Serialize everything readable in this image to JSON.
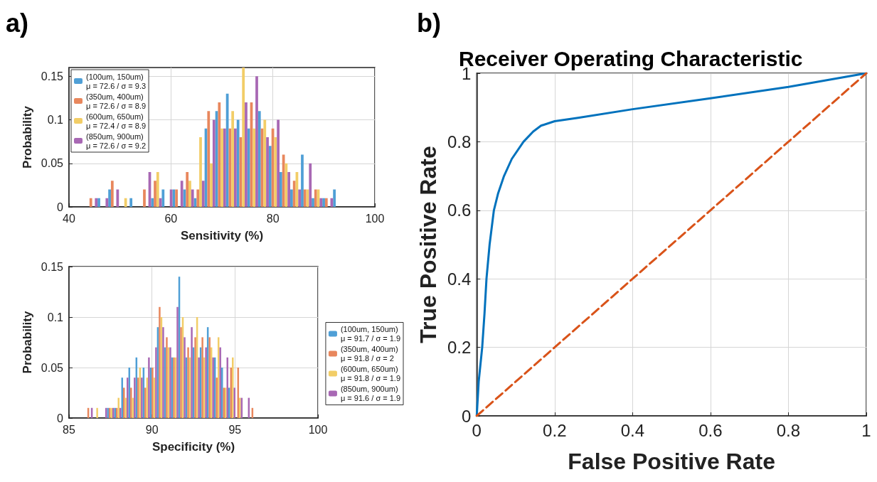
{
  "chart_data": [
    {
      "type": "histogram",
      "xlabel": "Sensitivity (%)",
      "ylabel": "Probability",
      "annotations": [
        "a)"
      ],
      "bins": [
        43.5,
        45.6,
        47.7,
        49.8,
        51.9,
        54.0,
        56.1,
        58.2,
        60.3,
        62.4,
        64.5,
        66.6,
        68.7,
        70.8,
        72.9,
        75.0,
        77.1,
        79.2,
        81.3,
        83.4,
        85.5,
        87.6,
        89.7,
        91.8,
        93.9
      ],
      "series": [
        {
          "name": "(100um, 150um)\nμ = 72.6 / σ = 9.3",
          "color": "#4f9fd6",
          "values": [
            0,
            0.01,
            0.02,
            0,
            0.01,
            0,
            0.01,
            0.02,
            0.02,
            0.02,
            0.01,
            0.09,
            0.11,
            0.13,
            0.1,
            0.09,
            0.11,
            0.07,
            0.04,
            0.02,
            0.06,
            0.01,
            0.01,
            0.02
          ]
        },
        {
          "name": "(350um, 400um)\nμ = 72.6 / σ = 8.9",
          "color": "#e8875d",
          "values": [
            0.01,
            0,
            0.03,
            0,
            0,
            0.02,
            0.03,
            0,
            0.02,
            0.04,
            0.02,
            0.11,
            0.12,
            0.09,
            0.08,
            0.12,
            0.09,
            0.09,
            0.06,
            0.03,
            0.02,
            0.02,
            0.01,
            0
          ]
        },
        {
          "name": "(600um, 650um)\nμ = 72.4 / σ = 8.9",
          "color": "#f2cd67",
          "values": [
            0,
            0,
            0,
            0.01,
            0,
            0,
            0.04,
            0,
            0,
            0.03,
            0.08,
            0.05,
            0.09,
            0.11,
            0.16,
            0.09,
            0.1,
            0.08,
            0.05,
            0.04,
            0.02,
            0.02,
            0,
            0
          ]
        },
        {
          "name": "(850um, 900um)\nμ = 72.6 / σ = 9.2",
          "color": "#a868b4",
          "values": [
            0.01,
            0.01,
            0.02,
            0,
            0,
            0.04,
            0.01,
            0.02,
            0.03,
            0.02,
            0.03,
            0.1,
            0.09,
            0.09,
            0.12,
            0.15,
            0.08,
            0.1,
            0.04,
            0.02,
            0.05,
            0.01,
            0.01,
            0
          ]
        }
      ],
      "xlim": [
        40,
        100
      ],
      "xticks": [
        40,
        60,
        80,
        100
      ],
      "ylim": [
        0,
        0.16
      ],
      "yticks": [
        0,
        0.05,
        0.1,
        0.15
      ],
      "grid": true,
      "legend": "top left"
    },
    {
      "type": "histogram",
      "xlabel": "Specificity (%)",
      "ylabel": "Probability",
      "bins": [
        86.0,
        86.43,
        86.86,
        87.29,
        87.72,
        88.15,
        88.58,
        89.01,
        89.44,
        89.87,
        90.3,
        90.73,
        91.16,
        91.59,
        92.02,
        92.45,
        92.88,
        93.31,
        93.74,
        94.17,
        94.6,
        95.03,
        95.46,
        95.89,
        96.32
      ],
      "series": [
        {
          "name": "(100um, 150um)\nμ = 91.7 / σ = 1.9",
          "color": "#4f9fd6",
          "values": [
            0,
            0,
            0,
            0.01,
            0.01,
            0.04,
            0.05,
            0.06,
            0.05,
            0.05,
            0.09,
            0.07,
            0.06,
            0.14,
            0.06,
            0.07,
            0.07,
            0.09,
            0.06,
            0.05,
            0.03,
            0,
            0,
            0
          ]
        },
        {
          "name": "(350um, 400um)\nμ = 91.8 / σ = 2",
          "color": "#e8875d",
          "values": [
            0.01,
            0,
            0,
            0.01,
            0.01,
            0.03,
            0.03,
            0.04,
            0.03,
            0.05,
            0.11,
            0.08,
            0.06,
            0.09,
            0.07,
            0.08,
            0.08,
            0.08,
            0.04,
            0.03,
            0.05,
            0.05,
            0,
            0.01
          ]
        },
        {
          "name": "(600um, 650um)\nμ = 91.8 / σ = 1.9",
          "color": "#f2cd67",
          "values": [
            0,
            0.01,
            0,
            0.01,
            0.02,
            0.02,
            0.02,
            0.05,
            0.04,
            0.04,
            0.1,
            0.07,
            0.06,
            0.1,
            0.06,
            0.1,
            0.06,
            0.07,
            0.08,
            0.03,
            0.06,
            0.02,
            0,
            0
          ]
        },
        {
          "name": "(850um, 900um)\nμ = 91.6 / σ = 1.9",
          "color": "#a868b4",
          "values": [
            0.01,
            0,
            0.01,
            0.01,
            0.01,
            0.04,
            0.04,
            0.04,
            0.06,
            0.07,
            0.09,
            0.07,
            0.11,
            0.08,
            0.09,
            0.06,
            0.07,
            0.06,
            0.07,
            0.06,
            0.03,
            0.02,
            0.02,
            0
          ]
        }
      ],
      "xlim": [
        85,
        100
      ],
      "xticks": [
        85,
        90,
        95,
        100
      ],
      "ylim": [
        0,
        0.15
      ],
      "yticks": [
        0,
        0.05,
        0.1,
        0.15
      ],
      "grid": true,
      "legend": "right"
    },
    {
      "type": "line",
      "title": "Receiver Operating Characteristic",
      "xlabel": "False Positive Rate",
      "ylabel": "True Positive Rate",
      "annotations": [
        "b)"
      ],
      "series": [
        {
          "color": "#0072bd",
          "line_style": "solid",
          "x": [
            0,
            0.005,
            0.014,
            0.02,
            0.025,
            0.033,
            0.044,
            0.055,
            0.07,
            0.09,
            0.12,
            0.145,
            0.165,
            0.2,
            0.26,
            0.4,
            0.6,
            0.8,
            1
          ],
          "values": [
            0,
            0.1,
            0.2,
            0.3,
            0.4,
            0.5,
            0.6,
            0.65,
            0.7,
            0.75,
            0.8,
            0.83,
            0.847,
            0.86,
            0.87,
            0.895,
            0.927,
            0.96,
            1
          ]
        },
        {
          "color": "#d95319",
          "line_style": "dashed",
          "x": [
            0,
            1
          ],
          "values": [
            0,
            1
          ]
        }
      ],
      "xlim": [
        0,
        1
      ],
      "xticks": [
        0,
        0.2,
        0.4,
        0.6,
        0.8,
        1
      ],
      "ylim": [
        0,
        1
      ],
      "yticks": [
        0,
        0.2,
        0.4,
        0.6,
        0.8,
        1
      ],
      "grid": true,
      "marker": "none",
      "legend": false
    }
  ]
}
